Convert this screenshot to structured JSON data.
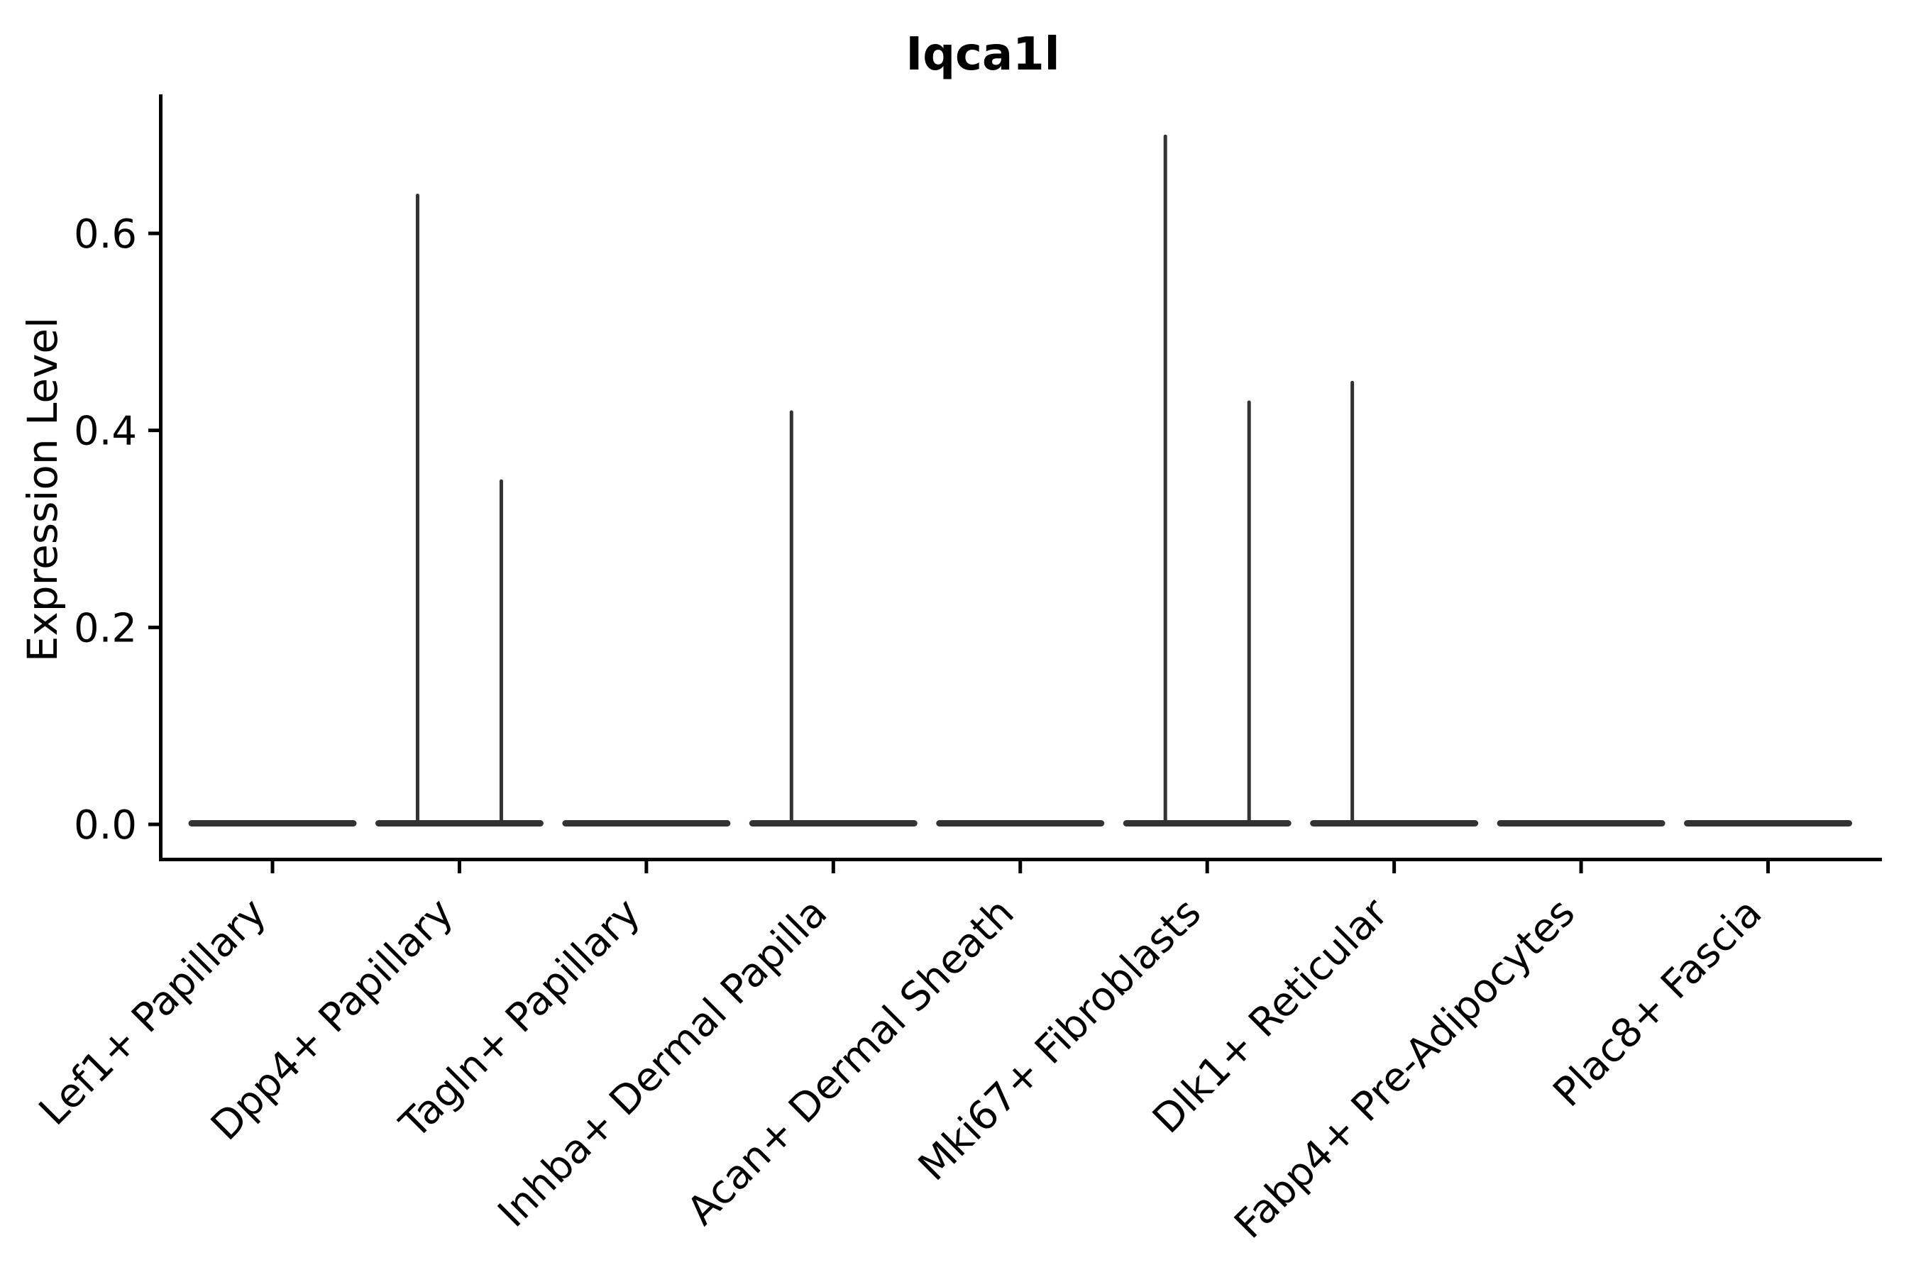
{
  "chart_data": {
    "type": "violin",
    "title": "Iqca1l",
    "xlabel": "",
    "ylabel": "Expression Level",
    "ylim": [
      0,
      0.74
    ],
    "yticks": [
      0.0,
      0.2,
      0.4,
      0.6
    ],
    "ytick_labels": [
      "0.0",
      "0.2",
      "0.4",
      "0.6"
    ],
    "grid": false,
    "legend": "none",
    "categories": [
      "Lef1+ Papillary",
      "Dpp4+ Papillary",
      "Tagln+ Papillary",
      "Inhba+ Dermal Papilla",
      "Acan+ Dermal Sheath",
      "Mki67+ Fibroblasts",
      "Dlk1+ Reticular",
      "Fabp4+ Pre-Adipocytes",
      "Plac8+ Fascia"
    ],
    "violins": [
      {
        "category": "Lef1+ Papillary",
        "base_value": 0.0,
        "spikes": []
      },
      {
        "category": "Dpp4+ Papillary",
        "base_value": 0.0,
        "spikes": [
          {
            "position": "left",
            "max_expression": 0.64
          },
          {
            "position": "right",
            "max_expression": 0.35
          }
        ]
      },
      {
        "category": "Tagln+ Papillary",
        "base_value": 0.0,
        "spikes": []
      },
      {
        "category": "Inhba+ Dermal Papilla",
        "base_value": 0.0,
        "spikes": [
          {
            "position": "left",
            "max_expression": 0.42
          }
        ]
      },
      {
        "category": "Acan+ Dermal Sheath",
        "base_value": 0.0,
        "spikes": []
      },
      {
        "category": "Mki67+ Fibroblasts",
        "base_value": 0.0,
        "spikes": [
          {
            "position": "left",
            "max_expression": 0.7
          },
          {
            "position": "right",
            "max_expression": 0.43
          }
        ]
      },
      {
        "category": "Dlk1+ Reticular",
        "base_value": 0.0,
        "spikes": [
          {
            "position": "left",
            "max_expression": 0.45
          }
        ]
      },
      {
        "category": "Fabp4+ Pre-Adipocytes",
        "base_value": 0.0,
        "spikes": []
      },
      {
        "category": "Plac8+ Fascia",
        "base_value": 0.0,
        "spikes": []
      }
    ],
    "colors": {
      "violin": "#333333",
      "axis": "#000000",
      "background": "#ffffff"
    }
  }
}
